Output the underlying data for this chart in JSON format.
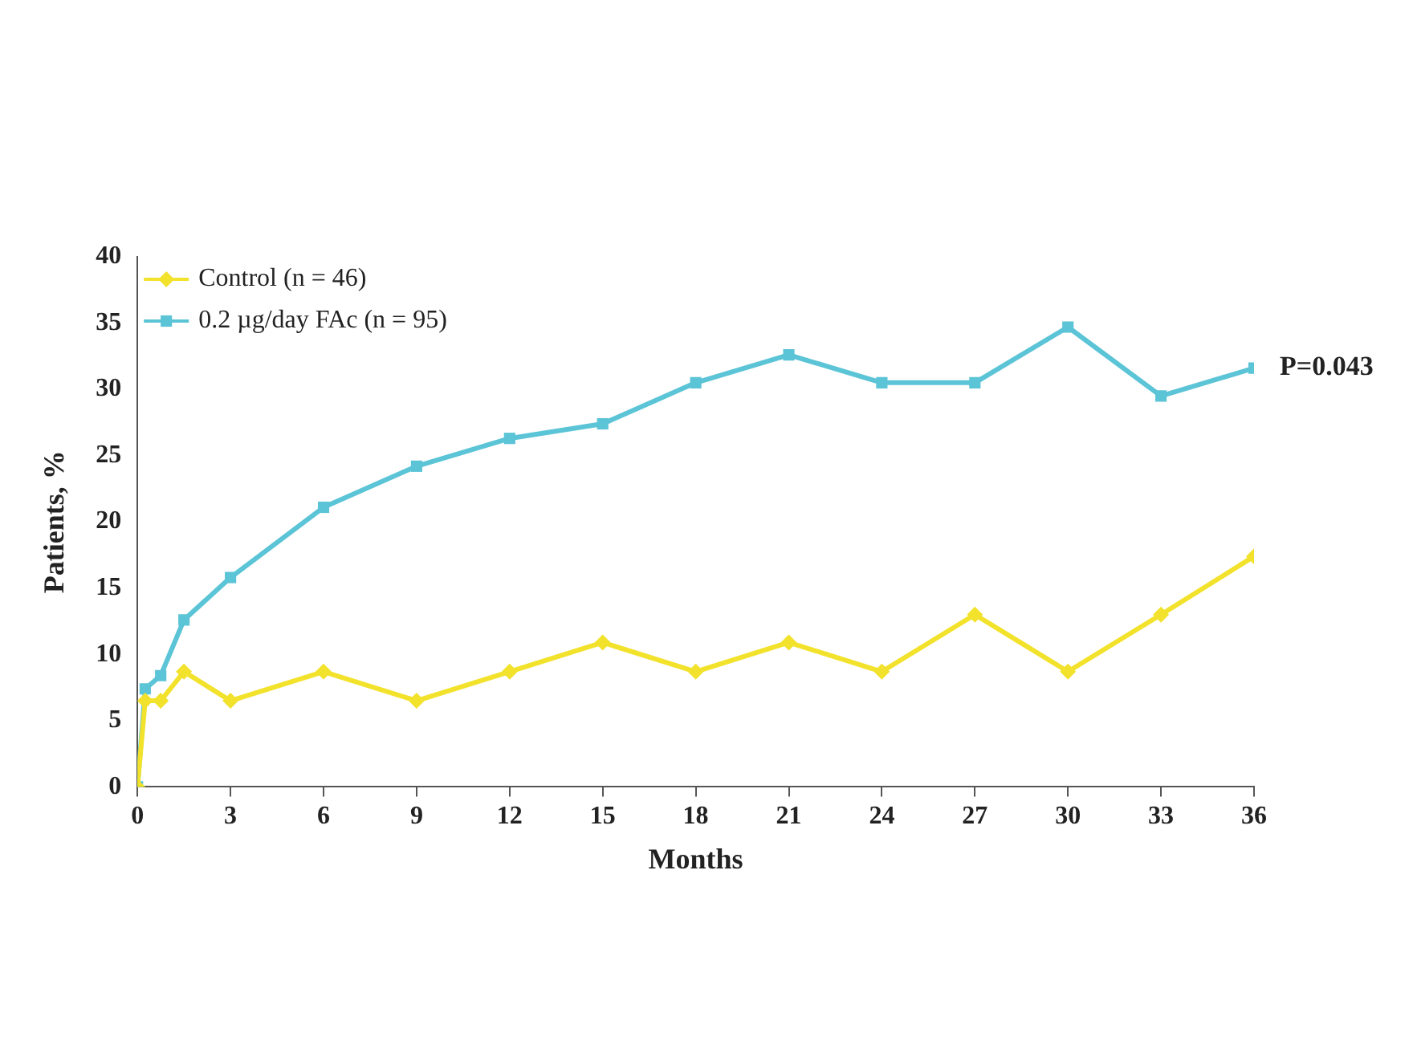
{
  "chart_data": {
    "type": "line",
    "xlabel": "Months",
    "ylabel": "Patients, %",
    "series": [
      {
        "name": "Control (n = 46)",
        "color": "#f2e22c",
        "marker": "diamond",
        "x": [
          0,
          0.25,
          0.75,
          1.5,
          3,
          6,
          9,
          12,
          15,
          18,
          21,
          24,
          27,
          30,
          33,
          36
        ],
        "values": [
          0,
          6.5,
          6.5,
          8.7,
          6.5,
          8.7,
          6.5,
          8.7,
          10.9,
          8.7,
          10.9,
          8.7,
          13.0,
          8.7,
          13.0,
          17.4
        ]
      },
      {
        "name": "0.2 µg/day FAc (n = 95)",
        "color": "#5bc4d6",
        "marker": "square",
        "x": [
          0,
          0.25,
          0.75,
          1.5,
          3,
          6,
          9,
          12,
          15,
          18,
          21,
          24,
          27,
          30,
          33,
          36
        ],
        "values": [
          0,
          7.4,
          8.4,
          12.6,
          15.8,
          21.1,
          24.2,
          26.3,
          27.4,
          30.5,
          32.6,
          30.5,
          30.5,
          34.7,
          29.5,
          31.6
        ]
      }
    ],
    "xlim": [
      0,
      36
    ],
    "xticks": [
      0,
      3,
      6,
      9,
      12,
      15,
      18,
      21,
      24,
      27,
      30,
      33,
      36
    ],
    "ylim": [
      0,
      40
    ],
    "yticks": [
      0,
      5,
      10,
      15,
      20,
      25,
      30,
      35,
      40
    ],
    "grid": false,
    "legend": "top left",
    "line_style": "solid",
    "annotations": [
      {
        "text": "P=0.043",
        "x": 36,
        "y": 31.6
      }
    ]
  }
}
